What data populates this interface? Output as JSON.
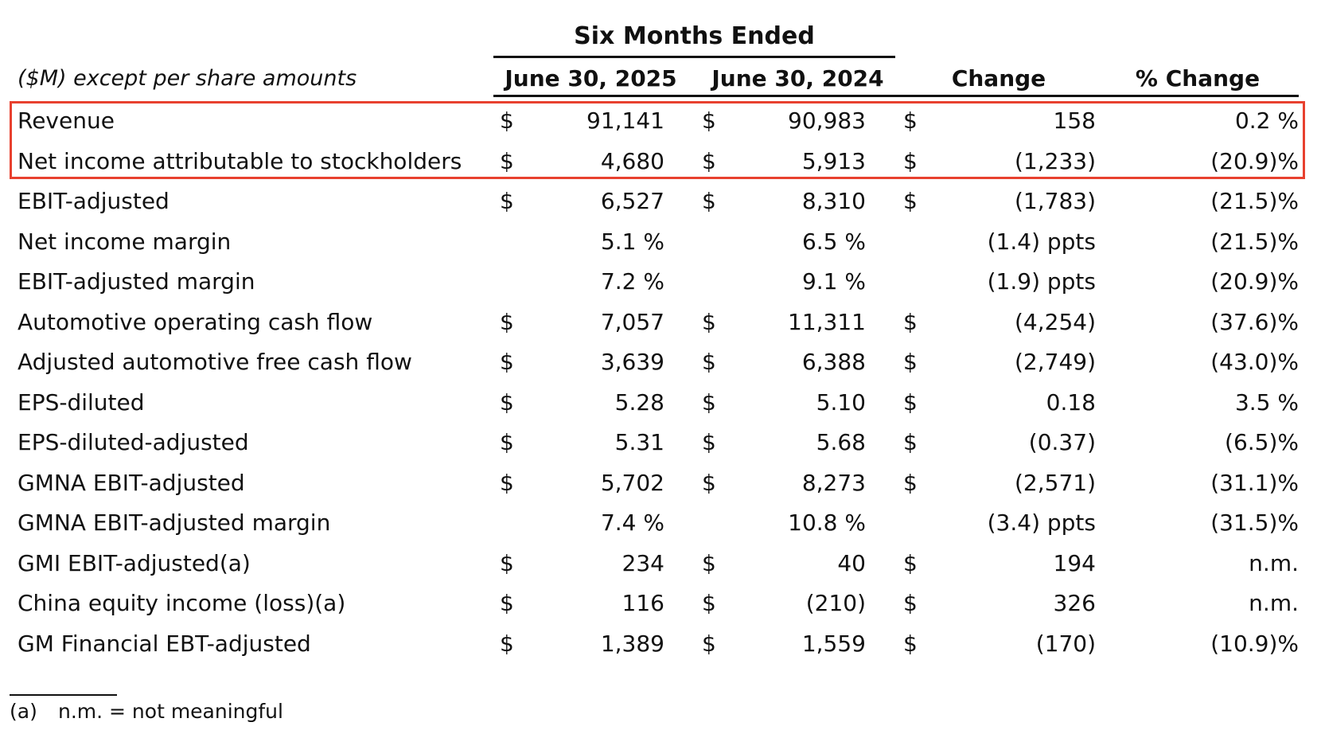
{
  "header": {
    "group_title": "Six Months Ended",
    "units_note": "($M) except per share amounts",
    "col_2025": "June 30, 2025",
    "col_2024": "June 30, 2024",
    "col_change": "Change",
    "col_pct_change": "% Change"
  },
  "rows": [
    {
      "label": "Revenue",
      "d1": "$",
      "v2025": "91,141",
      "d2": "$",
      "v2024": "90,983",
      "d3": "$",
      "change": "158",
      "pct": "0.2 %",
      "highlighted": true
    },
    {
      "label": "Net income attributable to stockholders",
      "d1": "$",
      "v2025": "4,680",
      "d2": "$",
      "v2024": "5,913",
      "d3": "$",
      "change": "(1,233)",
      "pct": "(20.9)%",
      "highlighted": true
    },
    {
      "label": "EBIT-adjusted",
      "d1": "$",
      "v2025": "6,527",
      "d2": "$",
      "v2024": "8,310",
      "d3": "$",
      "change": "(1,783)",
      "pct": "(21.5)%"
    },
    {
      "label": "Net income margin",
      "d1": "",
      "v2025": "5.1 %",
      "d2": "",
      "v2024": "6.5 %",
      "d3": "",
      "change": "(1.4) ppts",
      "pct": "(21.5)%"
    },
    {
      "label": "EBIT-adjusted margin",
      "d1": "",
      "v2025": "7.2 %",
      "d2": "",
      "v2024": "9.1 %",
      "d3": "",
      "change": "(1.9) ppts",
      "pct": "(20.9)%"
    },
    {
      "label": "Automotive operating cash flow",
      "d1": "$",
      "v2025": "7,057",
      "d2": "$",
      "v2024": "11,311",
      "d3": "$",
      "change": "(4,254)",
      "pct": "(37.6)%"
    },
    {
      "label": "Adjusted automotive free cash flow",
      "d1": "$",
      "v2025": "3,639",
      "d2": "$",
      "v2024": "6,388",
      "d3": "$",
      "change": "(2,749)",
      "pct": "(43.0)%"
    },
    {
      "label": "EPS-diluted",
      "d1": "$",
      "v2025": "5.28",
      "d2": "$",
      "v2024": "5.10",
      "d3": "$",
      "change": "0.18",
      "pct": "3.5 %"
    },
    {
      "label": "EPS-diluted-adjusted",
      "d1": "$",
      "v2025": "5.31",
      "d2": "$",
      "v2024": "5.68",
      "d3": "$",
      "change": "(0.37)",
      "pct": "(6.5)%"
    },
    {
      "label": "GMNA EBIT-adjusted",
      "d1": "$",
      "v2025": "5,702",
      "d2": "$",
      "v2024": "8,273",
      "d3": "$",
      "change": "(2,571)",
      "pct": "(31.1)%"
    },
    {
      "label": "GMNA EBIT-adjusted margin",
      "d1": "",
      "v2025": "7.4 %",
      "d2": "",
      "v2024": "10.8 %",
      "d3": "",
      "change": "(3.4) ppts",
      "pct": "(31.5)%"
    },
    {
      "label": "GMI EBIT-adjusted(a)",
      "d1": "$",
      "v2025": "234",
      "d2": "$",
      "v2024": "40",
      "d3": "$",
      "change": "194",
      "pct": "n.m."
    },
    {
      "label": "China equity income (loss)(a)",
      "d1": "$",
      "v2025": "116",
      "d2": "$",
      "v2024": "(210)",
      "d3": "$",
      "change": "326",
      "pct": "n.m."
    },
    {
      "label": "GM Financial EBT-adjusted",
      "d1": "$",
      "v2025": "1,389",
      "d2": "$",
      "v2024": "1,559",
      "d3": "$",
      "change": "(170)",
      "pct": "(10.9)%"
    }
  ],
  "footnote": {
    "marker": "(a)",
    "text": "n.m. = not meaningful"
  },
  "colors": {
    "highlight_border": "#e8412f",
    "text": "#111111"
  }
}
